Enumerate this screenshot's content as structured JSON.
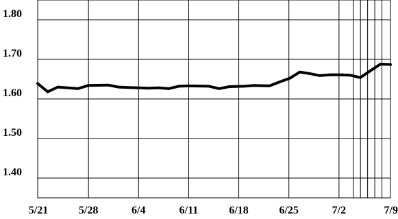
{
  "chart_data": {
    "type": "line",
    "title": "",
    "xlabel": "",
    "ylabel": "",
    "ylim": [
      1.35,
      1.85
    ],
    "y_ticks": [
      1.4,
      1.5,
      1.6,
      1.7,
      1.8
    ],
    "y_tick_labels": [
      "1.40",
      "1.50",
      "1.60",
      "1.70",
      "1.80"
    ],
    "x_tick_labels": [
      "5/21",
      "5/28",
      "6/4",
      "6/11",
      "6/18",
      "6/25",
      "7/2",
      "7/9"
    ],
    "grid": true,
    "x_range_days": [
      0,
      49
    ],
    "series": [
      {
        "x": [
          0,
          2,
          4,
          8,
          10,
          14,
          16,
          18,
          22,
          24,
          26,
          28,
          30,
          34,
          36,
          38,
          41,
          43,
          46,
          48,
          50,
          52,
          54,
          56,
          58,
          60,
          62,
          64,
          66,
          68,
          70
        ],
        "values": [
          1.639,
          1.618,
          1.63,
          1.626,
          1.634,
          1.635,
          1.63,
          1.629,
          1.627,
          1.628,
          1.626,
          1.632,
          1.633,
          1.632,
          1.626,
          1.631,
          1.632,
          1.634,
          1.633,
          1.643,
          1.652,
          1.668,
          1.664,
          1.659,
          1.661,
          1.661,
          1.66,
          1.654,
          1.671,
          1.688,
          1.687
        ]
      }
    ]
  }
}
